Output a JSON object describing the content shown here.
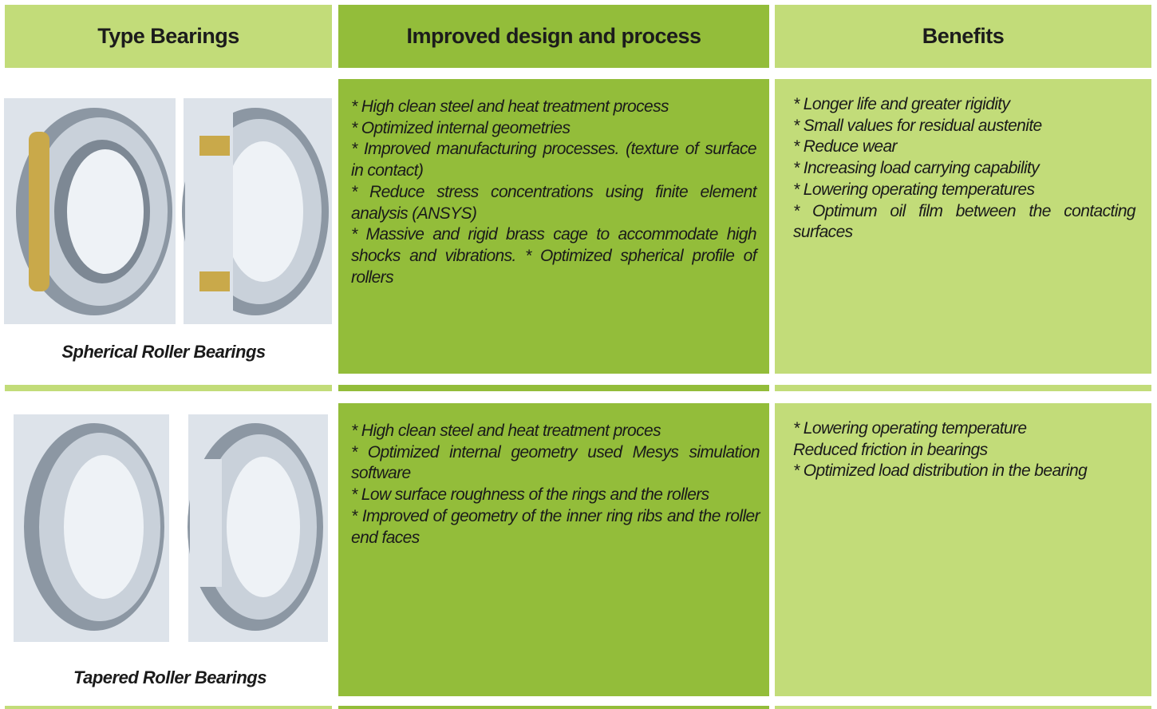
{
  "header": {
    "columns": [
      "Type Bearings",
      "Improved design and process",
      "Benefits"
    ]
  },
  "rows": [
    {
      "type": "Spherical Roller Bearings",
      "improved": [
        "* High clean steel and heat treatment process",
        "* Optimized internal geometries",
        "* Improved manufacturing processes. (texture of surface in contact)",
        "* Reduce stress concentrations using finite element analysis (ANSYS)",
        "* Massive and rigid brass cage to accommodate high shocks and vibrations. * Optimized spherical profile of rollers"
      ],
      "benefits": [
        "* Longer life and greater rigidity",
        "* Small values for residual austenite",
        "* Reduce wear",
        "* Increasing load carrying capability",
        "* Lowering operating temperatures",
        "* Optimum oil film between the contacting surfaces"
      ]
    },
    {
      "type": "Tapered Roller Bearings",
      "improved": [
        "* High clean steel and heat treatment proces",
        "* Optimized internal geometry used Mesys simulation software",
        "* Low surface roughness of the rings and the rollers",
        "* Improved of geometry of the inner ring ribs and the roller end faces"
      ],
      "benefits": [
        "* Lowering operating temperature",
        "Reduced friction in bearings",
        "* Optimized load distribution in the bearing"
      ]
    }
  ]
}
